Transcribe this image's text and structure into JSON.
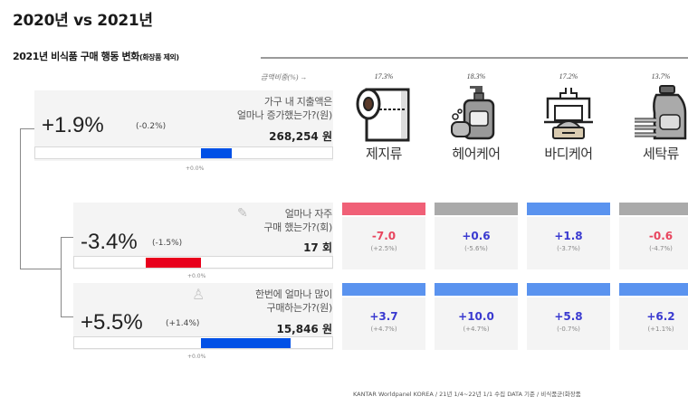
{
  "title": "2020년 vs 2021년",
  "subtitle": {
    "main": "2021년 비식품 구매 행동 변화",
    "note": "(화장품 제외)"
  },
  "ratio_label": "금액비중(%) →",
  "metrics": [
    {
      "id": "spend",
      "change": "+1.9%",
      "prev": "(-0.2%)",
      "q1": "가구 내 지출액은",
      "q2": "얼마나 증가했는가?(원)",
      "value": "268,254 원",
      "zero": "+0.0%",
      "bar_value": 1.9,
      "bar_color": "#0050e6"
    },
    {
      "id": "freq",
      "change": "-3.4%",
      "prev": "(-1.5%)",
      "q1": "얼마나 자주",
      "q2": "구매 했는가?(회)",
      "value": "17 회",
      "zero": "+0.0%",
      "bar_value": -3.4,
      "bar_color": "#e8001c"
    },
    {
      "id": "amount",
      "change": "+5.5%",
      "prev": "(+1.4%)",
      "q1": "한번에 얼마나 많이",
      "q2": "구매하는가?(원)",
      "value": "15,846 원",
      "zero": "+0.0%",
      "bar_value": 5.5,
      "bar_color": "#0050e6"
    }
  ],
  "categories": [
    {
      "name": "제지류",
      "share": "17.3%",
      "icon": "toilet-paper-icon",
      "freq": {
        "v": "-7.0",
        "p": "(+2.5%)",
        "color": "#e8455e",
        "bar": "#f06077"
      },
      "amount": {
        "v": "+3.7",
        "p": "(+4.7%)",
        "color": "#3a3ad0",
        "bar": "#5a93ef"
      }
    },
    {
      "name": "헤어케어",
      "share": "18.3%",
      "icon": "shampoo-bottle-icon",
      "freq": {
        "v": "+0.6",
        "p": "(-5.6%)",
        "color": "#3a3ad0",
        "bar": "#aaaaaa"
      },
      "amount": {
        "v": "+10.0",
        "p": "(+4.7%)",
        "color": "#3a3ad0",
        "bar": "#5a93ef"
      }
    },
    {
      "name": "바디케어",
      "share": "17.2%",
      "icon": "soap-dish-icon",
      "freq": {
        "v": "+1.8",
        "p": "(-3.7%)",
        "color": "#3a3ad0",
        "bar": "#5a93ef"
      },
      "amount": {
        "v": "+5.8",
        "p": "(-0.7%)",
        "color": "#3a3ad0",
        "bar": "#5a93ef"
      }
    },
    {
      "name": "세탁류",
      "share": "13.7%",
      "icon": "detergent-bottle-icon",
      "freq": {
        "v": "-0.6",
        "p": "(-4.7%)",
        "color": "#e8455e",
        "bar": "#aaaaaa"
      },
      "amount": {
        "v": "+6.2",
        "p": "(+1.1%)",
        "color": "#3a3ad0",
        "bar": "#5a93ef"
      }
    }
  ],
  "footer": "KANTAR Worldpanel KOREA / 21년 1/4~22년 1/1 수집 DATA 기준 / 비식품군(화장품"
}
